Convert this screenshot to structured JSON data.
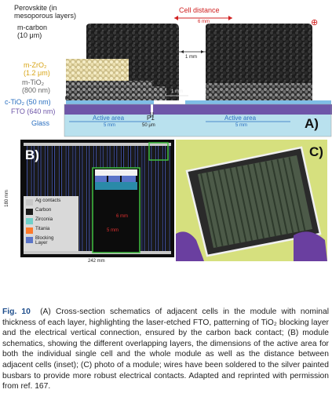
{
  "panel_a": {
    "layers": {
      "perovskite": "Perovskite (in\nmesoporous layers)",
      "carbon": "m-carbon\n(10 μm)",
      "zro2": "m-ZrO₂\n(1.2 μm)",
      "tio2": "m-TiO₂\n(800 nm)",
      "ctio2": "c-TiO₂ (50 nm)",
      "fto": "FTO (640 nm)",
      "glass": "Glass"
    },
    "cell_distance": "Cell distance",
    "cell_distance_value": "6 mm",
    "gap_value": "1 mm",
    "inner_gap_value": "1 mm",
    "active_area_1": "Active area",
    "active_area_1_value": "5 mm",
    "p1": "P1",
    "p1_value": "50 μm",
    "active_area_2": "Active area",
    "active_area_2_value": "5 mm",
    "plus_symbol": "⊕",
    "minus_symbol": "⊖",
    "letter": "A)",
    "colors": {
      "carbon": "#222222",
      "zro2": "#efe3b0",
      "tio2": "#8a8a8a",
      "fto": "#6e56a8",
      "glass": "#b9e1ee",
      "label_yellow": "#d8a415",
      "label_blue": "#2a6fc0",
      "label_red": "#d02020"
    }
  },
  "panel_b": {
    "letter": "B)",
    "height_label": "180 mm",
    "width_label": "242 mm",
    "inset_dim_1": "6 mm",
    "inset_dim_2": "5 mm",
    "legend": [
      {
        "label": "Ag contacts",
        "color": "#c8c8c8"
      },
      {
        "label": "Carbon",
        "color": "#1a1a1a"
      },
      {
        "label": "Zirconia",
        "color": "#6fd0c8"
      },
      {
        "label": "Titania",
        "color": "#ff7a2a"
      },
      {
        "label": "Blocking\nLayer",
        "color": "#5a74c8"
      }
    ]
  },
  "panel_c": {
    "letter": "C)"
  },
  "caption": {
    "fig": "Fig. 10",
    "text": "(A) Cross-section schematics of adjacent cells in the module with nominal thickness of each layer, highlighting the laser-etched FTO, patterning of TiO₂ blocking layer and the electrical vertical connection, ensured by the carbon back contact; (B) module schematics, showing the different overlapping layers, the dimensions of the active area for both the individual single cell and the whole module as well as the distance between adjacent cells (inset); (C) photo of a module; wires have been soldered to the silver painted busbars to provide more robust electrical contacts. Adapted and reprinted with permission from ref. 167."
  }
}
